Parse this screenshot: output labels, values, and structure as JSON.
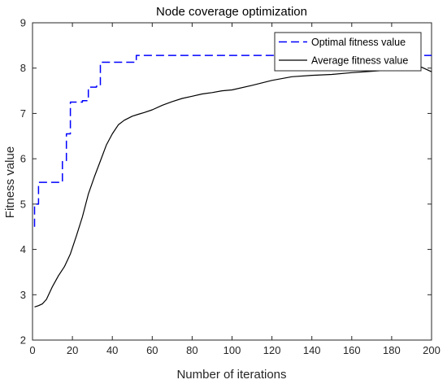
{
  "chart_data": {
    "type": "line",
    "title": "Node coverage optimization",
    "xlabel": "Number of iterations",
    "ylabel": "Fitness value",
    "xlim": [
      0,
      200
    ],
    "ylim": [
      2,
      9
    ],
    "xticks": [
      0,
      20,
      40,
      60,
      80,
      100,
      120,
      140,
      160,
      180,
      200
    ],
    "yticks": [
      2,
      3,
      4,
      5,
      6,
      7,
      8,
      9
    ],
    "grid": false,
    "legend_position": "top-right",
    "series": [
      {
        "name": "Optimal fitness value",
        "color": "#0000ff",
        "style": "dashed",
        "x": [
          1,
          1,
          3,
          3,
          15,
          15,
          17,
          17,
          19,
          19,
          25,
          25,
          28,
          28,
          32,
          32,
          34,
          34,
          52,
          52,
          200
        ],
        "y": [
          4.5,
          5.0,
          5.0,
          5.48,
          5.48,
          5.95,
          5.95,
          6.55,
          6.55,
          7.25,
          7.25,
          7.28,
          7.28,
          7.58,
          7.58,
          7.6,
          7.6,
          8.13,
          8.13,
          8.28,
          8.28
        ]
      },
      {
        "name": "Average fitness value",
        "color": "#000000",
        "style": "solid",
        "x": [
          1,
          3,
          5,
          7,
          10,
          13,
          16,
          19,
          22,
          25,
          28,
          31,
          34,
          37,
          40,
          43,
          46,
          50,
          53,
          56,
          60,
          65,
          70,
          75,
          80,
          85,
          90,
          95,
          100,
          110,
          120,
          130,
          140,
          150,
          160,
          170,
          180,
          190,
          195,
          200
        ],
        "y": [
          2.73,
          2.76,
          2.8,
          2.9,
          3.18,
          3.42,
          3.62,
          3.9,
          4.3,
          4.72,
          5.22,
          5.6,
          5.95,
          6.3,
          6.55,
          6.75,
          6.85,
          6.94,
          6.98,
          7.02,
          7.08,
          7.18,
          7.26,
          7.33,
          7.38,
          7.43,
          7.46,
          7.5,
          7.52,
          7.62,
          7.73,
          7.81,
          7.84,
          7.86,
          7.9,
          7.93,
          7.96,
          7.99,
          8.02,
          7.92
        ]
      }
    ]
  }
}
